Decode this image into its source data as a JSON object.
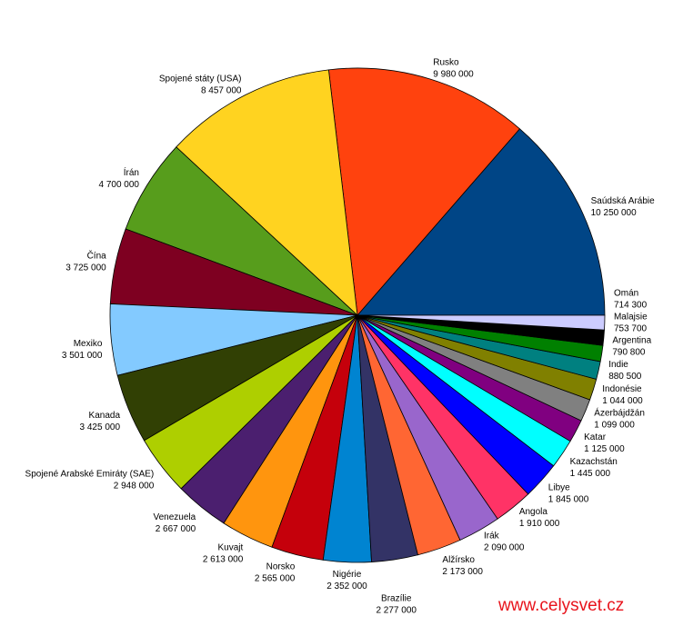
{
  "chart_data": {
    "type": "pie",
    "title": "",
    "start": "east, counter-clockwise",
    "slices": [
      {
        "label": "Saúdská Arábie",
        "value": 10250000,
        "display": "10 250 000",
        "color": "#004586"
      },
      {
        "label": "Rusko",
        "value": 9980000,
        "display": "9 980 000",
        "color": "#ff420e"
      },
      {
        "label": "Spojené státy (USA)",
        "value": 8457000,
        "display": "8 457 000",
        "color": "#ffd320"
      },
      {
        "label": "Írán",
        "value": 4700000,
        "display": "4 700 000",
        "color": "#579d1c"
      },
      {
        "label": "Čína",
        "value": 3725000,
        "display": "3 725 000",
        "color": "#7e0021"
      },
      {
        "label": "Mexiko",
        "value": 3501000,
        "display": "3 501 000",
        "color": "#83caff"
      },
      {
        "label": "Kanada",
        "value": 3425000,
        "display": "3 425 000",
        "color": "#314004"
      },
      {
        "label": "Spojené Arabské Emiráty (SAE)",
        "value": 2948000,
        "display": "2 948 000",
        "color": "#aecf00"
      },
      {
        "label": "Venezuela",
        "value": 2667000,
        "display": "2 667 000",
        "color": "#4b1f6f"
      },
      {
        "label": "Kuvajt",
        "value": 2613000,
        "display": "2 613 000",
        "color": "#ff950e"
      },
      {
        "label": "Norsko",
        "value": 2565000,
        "display": "2 565 000",
        "color": "#c5000b"
      },
      {
        "label": "Nigérie",
        "value": 2352000,
        "display": "2 352 000",
        "color": "#0084d1"
      },
      {
        "label": "Brazílie",
        "value": 2277000,
        "display": "2 277 000",
        "color": "#333366"
      },
      {
        "label": "Alžírsko",
        "value": 2173000,
        "display": "2 173 000",
        "color": "#ff6633"
      },
      {
        "label": "Irák",
        "value": 2090000,
        "display": "2 090 000",
        "color": "#9966cc"
      },
      {
        "label": "Angola",
        "value": 1910000,
        "display": "1 910 000",
        "color": "#ff3366"
      },
      {
        "label": "Libye",
        "value": 1845000,
        "display": "1 845 000",
        "color": "#0000ff"
      },
      {
        "label": "Kazachstán",
        "value": 1445000,
        "display": "1 445 000",
        "color": "#00ffff"
      },
      {
        "label": "Katar",
        "value": 1125000,
        "display": "1 125 000",
        "color": "#800080"
      },
      {
        "label": "Ázerbájdžán",
        "value": 1099000,
        "display": "1 099 000",
        "color": "#808080"
      },
      {
        "label": "Indonésie",
        "value": 1044000,
        "display": "1 044 000",
        "color": "#808000"
      },
      {
        "label": "Indie",
        "value": 880500,
        "display": "880 500",
        "color": "#008080"
      },
      {
        "label": "Argentina",
        "value": 790800,
        "display": "790 800",
        "color": "#008000"
      },
      {
        "label": "Malajsie",
        "value": 753700,
        "display": "753 700",
        "color": "#000000"
      },
      {
        "label": "Omán",
        "value": 714300,
        "display": "714 300",
        "color": "#ccccff"
      }
    ]
  },
  "watermark": "www.celysvet.cz"
}
